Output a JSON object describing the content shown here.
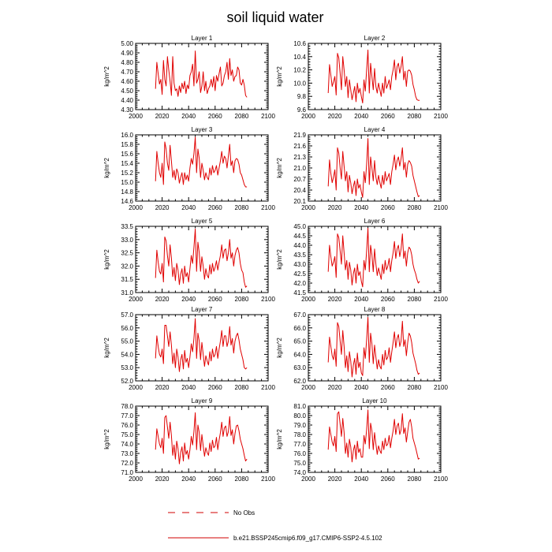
{
  "figure": {
    "title": "soil liquid water",
    "legend": [
      {
        "label": "No Obs",
        "style": "dashed",
        "color": "#d00000"
      },
      {
        "label": "b.e21.BSSP245cmip6.f09_g17.CMIP6-SSP2-4.5.102",
        "style": "solid",
        "color": "#d00000"
      }
    ]
  },
  "chart_data": [
    {
      "type": "line",
      "title": "Layer 1",
      "xlabel": "",
      "ylabel": "kg/m^2",
      "xlim": [
        2000,
        2100
      ],
      "ylim": [
        4.3,
        5.0
      ],
      "xticks": [
        "2000",
        "2020",
        "2040",
        "2060",
        "2080",
        "2100"
      ],
      "yticks": [
        "4.30",
        "4.40",
        "4.50",
        "4.60",
        "4.70",
        "4.80",
        "4.90",
        "5.00"
      ],
      "series": [
        {
          "color": "#e00000",
          "x_start": 2015,
          "x_step": 1,
          "values": [
            4.52,
            4.8,
            4.68,
            4.57,
            4.62,
            4.46,
            4.82,
            4.62,
            4.55,
            4.86,
            4.72,
            4.6,
            4.45,
            4.86,
            4.58,
            4.5,
            4.52,
            4.44,
            4.55,
            4.48,
            4.58,
            4.52,
            4.6,
            4.47,
            4.56,
            4.52,
            4.66,
            4.7,
            4.78,
            4.55,
            4.92,
            4.58,
            4.62,
            4.7,
            4.48,
            4.55,
            4.7,
            4.5,
            4.6,
            4.47,
            4.52,
            4.55,
            4.62,
            4.54,
            4.65,
            4.5,
            4.66,
            4.6,
            4.68,
            4.75,
            4.55,
            4.58,
            4.66,
            4.7,
            4.8,
            4.62,
            4.84,
            4.66,
            4.72,
            4.6,
            4.65,
            4.66,
            4.75,
            4.72,
            4.58,
            4.56,
            4.62,
            4.56,
            4.45,
            4.43
          ]
        }
      ]
    },
    {
      "type": "line",
      "title": "Layer 2",
      "xlabel": "",
      "ylabel": "kg/m^2",
      "xlim": [
        2000,
        2100
      ],
      "ylim": [
        9.6,
        10.6
      ],
      "xticks": [
        "2000",
        "2020",
        "2040",
        "2060",
        "2080",
        "2100"
      ],
      "yticks": [
        "9.6",
        "9.8",
        "10.0",
        "10.2",
        "10.4",
        "10.6"
      ],
      "series": [
        {
          "color": "#e00000",
          "x_start": 2015,
          "x_step": 1,
          "values": [
            9.85,
            10.28,
            10.12,
            9.95,
            10.02,
            10.1,
            9.82,
            10.45,
            10.38,
            10.15,
            9.9,
            10.4,
            10.2,
            9.95,
            10.1,
            9.78,
            10.05,
            9.9,
            9.75,
            9.85,
            9.95,
            9.72,
            10.0,
            9.85,
            9.92,
            9.8,
            9.7,
            10.05,
            9.88,
            10.2,
            10.5,
            9.85,
            10.3,
            10.1,
            9.9,
            10.22,
            9.95,
            9.85,
            10.0,
            9.9,
            9.8,
            10.0,
            9.85,
            10.1,
            9.92,
            9.98,
            10.05,
            9.9,
            10.1,
            10.2,
            10.35,
            10.05,
            10.25,
            10.3,
            10.15,
            10.25,
            10.4,
            10.05,
            10.18,
            9.95,
            10.18,
            10.2,
            10.18,
            10.12,
            9.98,
            9.9,
            9.8,
            9.75,
            9.74,
            9.74
          ]
        }
      ]
    },
    {
      "type": "line",
      "title": "Layer 3",
      "xlabel": "",
      "ylabel": "kg/m^2",
      "xlim": [
        2000,
        2100
      ],
      "ylim": [
        14.6,
        16.0
      ],
      "xticks": [
        "2000",
        "2020",
        "2040",
        "2060",
        "2080",
        "2100"
      ],
      "yticks": [
        "14.6",
        "14.8",
        "15.0",
        "15.2",
        "15.4",
        "15.6",
        "15.8",
        "16.0"
      ],
      "series": [
        {
          "color": "#e00000",
          "x_start": 2015,
          "x_step": 1,
          "values": [
            15.02,
            15.65,
            15.4,
            15.2,
            15.1,
            15.4,
            14.95,
            15.85,
            15.7,
            15.4,
            15.25,
            15.78,
            15.45,
            15.1,
            15.25,
            15.05,
            15.28,
            15.2,
            14.98,
            15.1,
            15.2,
            14.95,
            15.2,
            15.05,
            15.15,
            15.02,
            15.3,
            15.5,
            15.38,
            15.6,
            15.95,
            15.2,
            15.7,
            15.5,
            15.1,
            15.4,
            15.25,
            15.05,
            15.2,
            15.1,
            15.05,
            15.3,
            15.15,
            15.35,
            15.2,
            15.25,
            15.35,
            15.15,
            15.3,
            15.45,
            15.65,
            15.4,
            15.55,
            15.5,
            15.3,
            15.55,
            15.8,
            15.35,
            15.45,
            15.2,
            15.45,
            15.5,
            15.48,
            15.38,
            15.2,
            15.15,
            15.05,
            14.95,
            14.9,
            14.9
          ]
        }
      ]
    },
    {
      "type": "line",
      "title": "Layer 4",
      "xlabel": "",
      "ylabel": "kg/m^2",
      "xlim": [
        2000,
        2100
      ],
      "ylim": [
        20.1,
        21.9
      ],
      "xticks": [
        "2000",
        "2020",
        "2040",
        "2060",
        "2080",
        "2100"
      ],
      "yticks": [
        "20.1",
        "20.4",
        "20.7",
        "21.0",
        "21.3",
        "21.6",
        "21.9"
      ],
      "series": [
        {
          "color": "#e00000",
          "x_start": 2015,
          "x_step": 1,
          "values": [
            20.5,
            21.22,
            20.85,
            20.6,
            20.75,
            20.95,
            20.4,
            21.55,
            21.4,
            21.0,
            20.7,
            21.45,
            21.05,
            20.65,
            20.9,
            20.35,
            20.8,
            20.6,
            20.3,
            20.5,
            20.65,
            20.25,
            20.7,
            20.45,
            20.55,
            20.35,
            20.2,
            20.9,
            20.6,
            21.1,
            21.8,
            20.55,
            21.3,
            21.0,
            20.65,
            21.2,
            20.75,
            20.55,
            20.8,
            20.6,
            20.45,
            20.8,
            20.55,
            20.9,
            20.65,
            20.75,
            20.85,
            20.55,
            20.9,
            21.1,
            21.35,
            20.95,
            21.2,
            21.3,
            21.05,
            21.25,
            21.55,
            20.95,
            21.15,
            20.75,
            21.1,
            21.2,
            21.15,
            21.05,
            20.8,
            20.65,
            20.5,
            20.35,
            20.22,
            20.25
          ]
        }
      ]
    },
    {
      "type": "line",
      "title": "Layer 5",
      "xlabel": "",
      "ylabel": "kg/m^2",
      "xlim": [
        2000,
        2100
      ],
      "ylim": [
        31.0,
        33.5
      ],
      "xticks": [
        "2000",
        "2020",
        "2040",
        "2060",
        "2080",
        "2100"
      ],
      "yticks": [
        "31.0",
        "31.5",
        "32.0",
        "32.5",
        "33.0",
        "33.5"
      ],
      "series": [
        {
          "color": "#e00000",
          "x_start": 2015,
          "x_step": 1,
          "values": [
            31.55,
            32.6,
            32.15,
            31.8,
            31.7,
            32.1,
            31.4,
            33.1,
            32.95,
            32.4,
            32.0,
            32.8,
            32.3,
            31.6,
            31.95,
            31.45,
            32.1,
            31.85,
            31.3,
            31.7,
            31.9,
            31.35,
            32.0,
            31.6,
            31.75,
            31.4,
            31.9,
            32.4,
            32.1,
            32.7,
            33.4,
            31.8,
            32.9,
            32.5,
            31.8,
            32.35,
            32.0,
            31.5,
            31.9,
            31.65,
            31.55,
            32.05,
            31.7,
            32.1,
            31.8,
            31.95,
            32.2,
            31.85,
            32.15,
            32.4,
            32.8,
            32.3,
            32.6,
            32.65,
            32.2,
            32.5,
            33.0,
            32.3,
            32.5,
            32.0,
            32.4,
            32.6,
            32.7,
            32.5,
            32.1,
            31.85,
            31.75,
            31.4,
            31.2,
            31.25
          ]
        }
      ]
    },
    {
      "type": "line",
      "title": "Layer 6",
      "xlabel": "",
      "ylabel": "kg/m^2",
      "xlim": [
        2000,
        2100
      ],
      "ylim": [
        41.5,
        45.0
      ],
      "xticks": [
        "2000",
        "2020",
        "2040",
        "2060",
        "2080",
        "2100"
      ],
      "yticks": [
        "41.5",
        "42.0",
        "42.5",
        "43.0",
        "43.5",
        "44.0",
        "44.5",
        "45.0"
      ],
      "series": [
        {
          "color": "#e00000",
          "x_start": 2015,
          "x_step": 1,
          "values": [
            42.6,
            44.0,
            43.4,
            42.9,
            43.1,
            43.4,
            42.3,
            44.6,
            44.4,
            43.7,
            43.0,
            44.5,
            43.6,
            42.7,
            43.2,
            42.2,
            43.1,
            42.7,
            41.9,
            42.5,
            42.8,
            42.0,
            43.0,
            42.4,
            42.6,
            42.1,
            41.8,
            43.2,
            42.7,
            43.7,
            44.9,
            42.6,
            44.0,
            43.5,
            42.6,
            43.8,
            43.0,
            42.4,
            42.8,
            42.5,
            42.2,
            43.0,
            42.5,
            43.2,
            42.7,
            42.9,
            43.3,
            42.6,
            43.2,
            43.6,
            44.2,
            43.3,
            43.8,
            44.0,
            43.4,
            43.8,
            44.6,
            43.3,
            43.7,
            42.9,
            43.6,
            43.9,
            43.8,
            43.5,
            43.0,
            42.7,
            42.5,
            42.2,
            42.0,
            42.1
          ]
        }
      ]
    },
    {
      "type": "line",
      "title": "Layer 7",
      "xlabel": "",
      "ylabel": "kg/m^2",
      "xlim": [
        2000,
        2100
      ],
      "ylim": [
        52.0,
        57.0
      ],
      "xticks": [
        "2000",
        "2020",
        "2040",
        "2060",
        "2080",
        "2100"
      ],
      "yticks": [
        "52.0",
        "53.0",
        "54.0",
        "55.0",
        "56.0",
        "57.0"
      ],
      "series": [
        {
          "color": "#e00000",
          "x_start": 2015,
          "x_step": 1,
          "values": [
            53.7,
            55.4,
            54.6,
            54.0,
            53.8,
            54.4,
            53.3,
            56.2,
            56.2,
            55.4,
            54.6,
            55.7,
            54.7,
            53.3,
            54.1,
            53.0,
            54.4,
            53.8,
            52.7,
            53.6,
            54.0,
            52.9,
            54.3,
            53.4,
            53.7,
            53.0,
            53.8,
            54.8,
            54.2,
            55.2,
            56.7,
            53.7,
            55.6,
            55.0,
            53.6,
            54.9,
            54.0,
            53.1,
            53.9,
            53.5,
            53.2,
            54.2,
            53.5,
            54.4,
            53.8,
            54.0,
            54.6,
            53.7,
            54.4,
            55.0,
            55.8,
            54.6,
            55.4,
            55.4,
            54.6,
            55.0,
            56.1,
            54.7,
            55.2,
            54.1,
            55.0,
            55.4,
            55.6,
            55.1,
            54.4,
            54.0,
            53.6,
            53.0,
            52.9,
            53.0
          ]
        }
      ]
    },
    {
      "type": "line",
      "title": "Layer 8",
      "xlabel": "",
      "ylabel": "kg/m^2",
      "xlim": [
        2000,
        2100
      ],
      "ylim": [
        62.0,
        67.0
      ],
      "xticks": [
        "2000",
        "2020",
        "2040",
        "2060",
        "2080",
        "2100"
      ],
      "yticks": [
        "62.0",
        "63.0",
        "64.0",
        "65.0",
        "66.0",
        "67.0"
      ],
      "series": [
        {
          "color": "#e00000",
          "x_start": 2015,
          "x_step": 1,
          "values": [
            63.4,
            65.3,
            64.6,
            63.9,
            63.6,
            64.4,
            63.1,
            66.4,
            66.1,
            65.0,
            64.0,
            65.8,
            64.6,
            63.0,
            63.9,
            62.7,
            64.2,
            63.5,
            62.3,
            63.2,
            63.7,
            62.5,
            64.1,
            63.0,
            63.4,
            62.6,
            62.4,
            64.5,
            63.7,
            65.1,
            66.8,
            63.4,
            65.6,
            64.8,
            63.3,
            64.7,
            63.8,
            62.9,
            63.6,
            63.1,
            62.9,
            64.0,
            63.2,
            64.3,
            63.6,
            63.8,
            64.5,
            63.4,
            64.2,
            64.9,
            65.7,
            64.5,
            65.2,
            65.5,
            64.6,
            65.0,
            66.5,
            64.6,
            65.1,
            63.9,
            64.9,
            65.6,
            65.4,
            64.9,
            64.1,
            63.7,
            63.3,
            62.8,
            62.5,
            62.6
          ]
        }
      ]
    },
    {
      "type": "line",
      "title": "Layer 9",
      "xlabel": "",
      "ylabel": "kg/m^2",
      "xlim": [
        2000,
        2100
      ],
      "ylim": [
        71.0,
        78.0
      ],
      "xticks": [
        "2000",
        "2020",
        "2040",
        "2060",
        "2080",
        "2100"
      ],
      "yticks": [
        "71.0",
        "72.0",
        "73.0",
        "74.0",
        "75.0",
        "76.0",
        "77.0",
        "78.0"
      ],
      "series": [
        {
          "color": "#e00000",
          "x_start": 2015,
          "x_step": 1,
          "values": [
            73.4,
            75.6,
            74.8,
            74.0,
            73.6,
            74.6,
            73.0,
            76.8,
            77.0,
            75.8,
            74.6,
            76.3,
            74.9,
            72.8,
            73.9,
            72.4,
            74.3,
            73.5,
            71.9,
            73.1,
            73.7,
            72.2,
            74.1,
            72.9,
            73.3,
            72.4,
            73.4,
            74.8,
            73.9,
            75.3,
            77.3,
            73.4,
            76.0,
            75.2,
            73.3,
            75.0,
            73.8,
            72.7,
            73.6,
            73.1,
            72.8,
            74.1,
            73.2,
            74.4,
            73.6,
            73.8,
            74.7,
            73.4,
            74.4,
            75.2,
            76.3,
            74.8,
            75.7,
            75.9,
            74.8,
            75.3,
            76.9,
            74.9,
            75.5,
            74.0,
            75.1,
            75.9,
            76.0,
            75.4,
            74.5,
            74.0,
            73.5,
            72.8,
            72.2,
            72.4
          ]
        }
      ]
    },
    {
      "type": "line",
      "title": "Layer 10",
      "xlabel": "",
      "ylabel": "kg/m^2",
      "xlim": [
        2000,
        2100
      ],
      "ylim": [
        74.0,
        81.0
      ],
      "xticks": [
        "2000",
        "2020",
        "2040",
        "2060",
        "2080",
        "2100"
      ],
      "yticks": [
        "74.0",
        "75.0",
        "76.0",
        "77.0",
        "78.0",
        "79.0",
        "80.0",
        "81.0"
      ],
      "series": [
        {
          "color": "#e00000",
          "x_start": 2015,
          "x_step": 1,
          "values": [
            76.4,
            78.8,
            78.0,
            77.2,
            76.8,
            77.8,
            76.2,
            80.2,
            80.4,
            79.1,
            77.8,
            79.7,
            78.2,
            76.0,
            77.1,
            75.6,
            77.5,
            76.7,
            75.1,
            76.3,
            76.9,
            75.4,
            77.3,
            76.1,
            76.5,
            75.6,
            75.6,
            77.9,
            77.0,
            78.5,
            80.6,
            76.5,
            79.2,
            78.4,
            76.4,
            78.2,
            77.0,
            75.9,
            76.8,
            76.3,
            76.0,
            77.3,
            76.4,
            77.6,
            76.8,
            77.0,
            77.9,
            76.6,
            77.6,
            78.4,
            79.6,
            78.0,
            78.9,
            79.2,
            78.0,
            78.5,
            80.2,
            78.1,
            78.7,
            77.2,
            78.3,
            79.3,
            79.6,
            78.8,
            77.6,
            77.1,
            76.6,
            76.0,
            75.4,
            75.5
          ]
        }
      ]
    }
  ]
}
